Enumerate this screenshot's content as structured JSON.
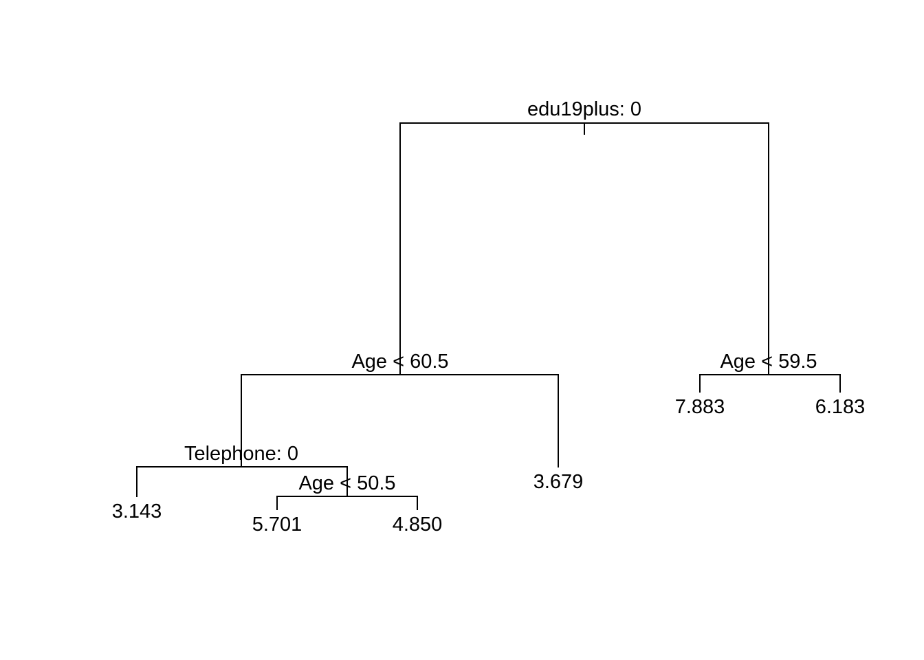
{
  "tree": {
    "root": {
      "split_label": "edu19plus: 0",
      "left": {
        "split_label": "Age < 60.5",
        "left": {
          "split_label": "Telephone: 0",
          "left": {
            "leaf_value": "3.143"
          },
          "right": {
            "split_label": "Age < 50.5",
            "left": {
              "leaf_value": "5.701"
            },
            "right": {
              "leaf_value": "4.850"
            }
          }
        },
        "right": {
          "leaf_value": "3.679"
        }
      },
      "right": {
        "split_label": "Age < 59.5",
        "left": {
          "leaf_value": "7.883"
        },
        "right": {
          "leaf_value": "6.183"
        }
      }
    }
  },
  "colors": {
    "line": "#000000",
    "text": "#000000",
    "background": "#ffffff"
  }
}
